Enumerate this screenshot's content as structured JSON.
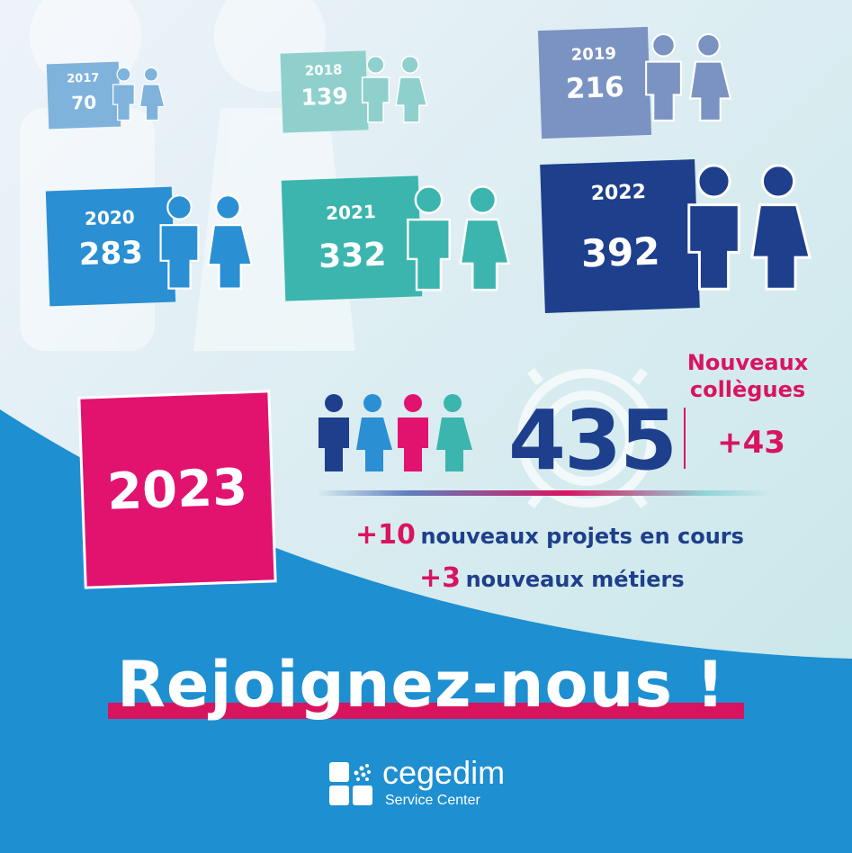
{
  "timeline": [
    {
      "year": "2017",
      "count": "70",
      "color": "#7fb3dc"
    },
    {
      "year": "2018",
      "count": "139",
      "color": "#8fd0cc"
    },
    {
      "year": "2019",
      "count": "216",
      "color": "#7b93c2"
    },
    {
      "year": "2020",
      "count": "283",
      "color": "#2a8fd3"
    },
    {
      "year": "2021",
      "count": "332",
      "color": "#3bb5ad"
    },
    {
      "year": "2022",
      "count": "392",
      "color": "#1e3f8c"
    }
  ],
  "highlight": {
    "year": "2023",
    "count": "435",
    "new_colleagues_label": "Nouveaux collègues",
    "new_colleagues_value": "+43",
    "projects_num": "+10",
    "projects_text": "nouveaux projets en cours",
    "jobs_num": "+3",
    "jobs_text": "nouveaux métiers"
  },
  "cta": "Rejoignez-nous !",
  "brand": {
    "name": "cegedim",
    "subtitle": "Service Center"
  },
  "colors": {
    "pink": "#e2126f",
    "navy": "#1e3f8c",
    "blue": "#2a8fd3",
    "teal": "#3bb5ad"
  }
}
